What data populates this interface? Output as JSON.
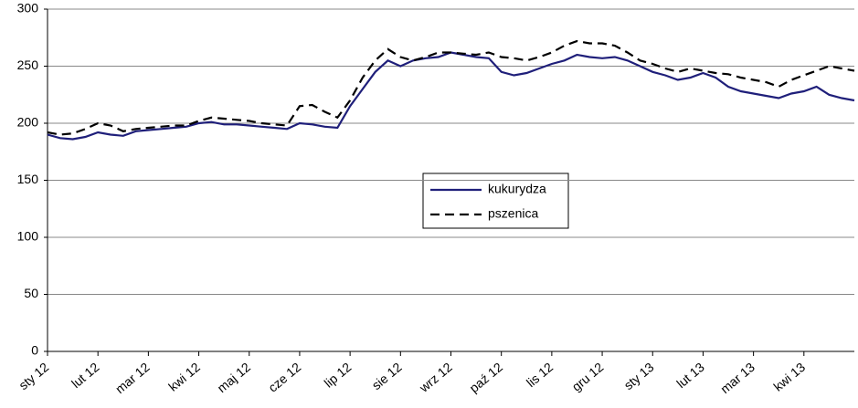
{
  "chart_data": {
    "type": "line",
    "categories": [
      "sty 12",
      null,
      null,
      null,
      "lut 12",
      null,
      null,
      null,
      "mar 12",
      null,
      null,
      null,
      "kwi 12",
      null,
      null,
      null,
      "maj 12",
      null,
      null,
      null,
      "cze 12",
      null,
      null,
      null,
      "lip 12",
      null,
      null,
      null,
      "sie 12",
      null,
      null,
      null,
      "wrz 12",
      null,
      null,
      null,
      "paź 12",
      null,
      null,
      null,
      "lis 12",
      null,
      null,
      null,
      "gru 12",
      null,
      null,
      null,
      "sty 13",
      null,
      null,
      null,
      "lut 13",
      null,
      null,
      null,
      "mar 13",
      null,
      null,
      null,
      "kwi 13",
      null,
      null,
      null,
      null
    ],
    "series": [
      {
        "name": "kukurydza",
        "color": "#1f1f7a",
        "dash": false,
        "values": [
          190,
          187,
          186,
          188,
          192,
          190,
          189,
          193,
          194,
          195,
          196,
          197,
          200,
          201,
          199,
          199,
          198,
          197,
          196,
          195,
          200,
          199,
          197,
          196,
          215,
          230,
          245,
          255,
          250,
          255,
          257,
          258,
          262,
          260,
          258,
          257,
          245,
          242,
          244,
          248,
          252,
          255,
          260,
          258,
          257,
          258,
          255,
          250,
          245,
          242,
          238,
          240,
          244,
          240,
          232,
          228,
          226,
          224,
          222,
          226,
          228,
          232,
          225,
          222,
          220
        ]
      },
      {
        "name": "pszenica",
        "color": "#000000",
        "dash": true,
        "values": [
          192,
          190,
          191,
          195,
          200,
          198,
          193,
          195,
          196,
          197,
          198,
          198,
          202,
          205,
          204,
          203,
          202,
          200,
          199,
          198,
          215,
          216,
          210,
          205,
          220,
          240,
          255,
          265,
          258,
          255,
          258,
          262,
          262,
          261,
          260,
          262,
          258,
          257,
          255,
          258,
          262,
          268,
          272,
          270,
          270,
          268,
          262,
          255,
          252,
          248,
          245,
          248,
          246,
          244,
          243,
          240,
          238,
          236,
          232,
          238,
          242,
          246,
          250,
          248,
          246
        ]
      }
    ],
    "ylim": [
      0,
      300
    ],
    "yticks": [
      0,
      50,
      100,
      150,
      200,
      250,
      300
    ],
    "grid": true
  }
}
